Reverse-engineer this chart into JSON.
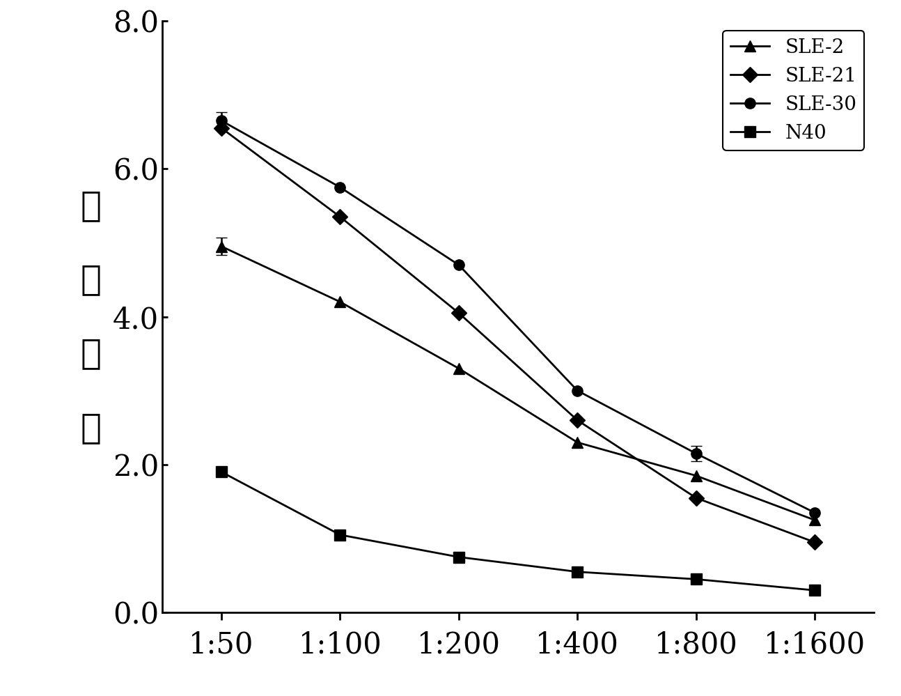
{
  "x_labels": [
    "1:50",
    "1:100",
    "1:200",
    "1:400",
    "1:800",
    "1:1600"
  ],
  "x_values": [
    0,
    1,
    2,
    3,
    4,
    5
  ],
  "series": [
    {
      "label": "SLE-2",
      "marker": "^",
      "color": "#000000",
      "y": [
        4.95,
        4.2,
        3.3,
        2.3,
        1.85,
        1.25
      ],
      "yerr": [
        0.12,
        0,
        0,
        0,
        0,
        0
      ]
    },
    {
      "label": "SLE-21",
      "marker": "D",
      "color": "#000000",
      "y": [
        6.55,
        5.35,
        4.05,
        2.6,
        1.55,
        0.95
      ],
      "yerr": [
        0,
        0,
        0,
        0,
        0,
        0
      ]
    },
    {
      "label": "SLE-30",
      "marker": "o",
      "color": "#000000",
      "y": [
        6.65,
        5.75,
        4.7,
        3.0,
        2.15,
        1.35
      ],
      "yerr": [
        0.12,
        0,
        0,
        0,
        0.1,
        0
      ]
    },
    {
      "label": "N40",
      "marker": "s",
      "color": "#000000",
      "y": [
        1.9,
        1.05,
        0.75,
        0.55,
        0.45,
        0.3
      ],
      "yerr": [
        0,
        0,
        0,
        0,
        0,
        0
      ]
    }
  ],
  "ylabel": "结合指数",
  "ylim": [
    0.0,
    8.0
  ],
  "yticks": [
    0.0,
    2.0,
    4.0,
    6.0,
    8.0
  ],
  "background_color": "#ffffff",
  "legend_fontsize": 20,
  "tick_fontsize": 30,
  "ylabel_fontsize": 36,
  "linewidth": 2.0,
  "markersize": 11
}
